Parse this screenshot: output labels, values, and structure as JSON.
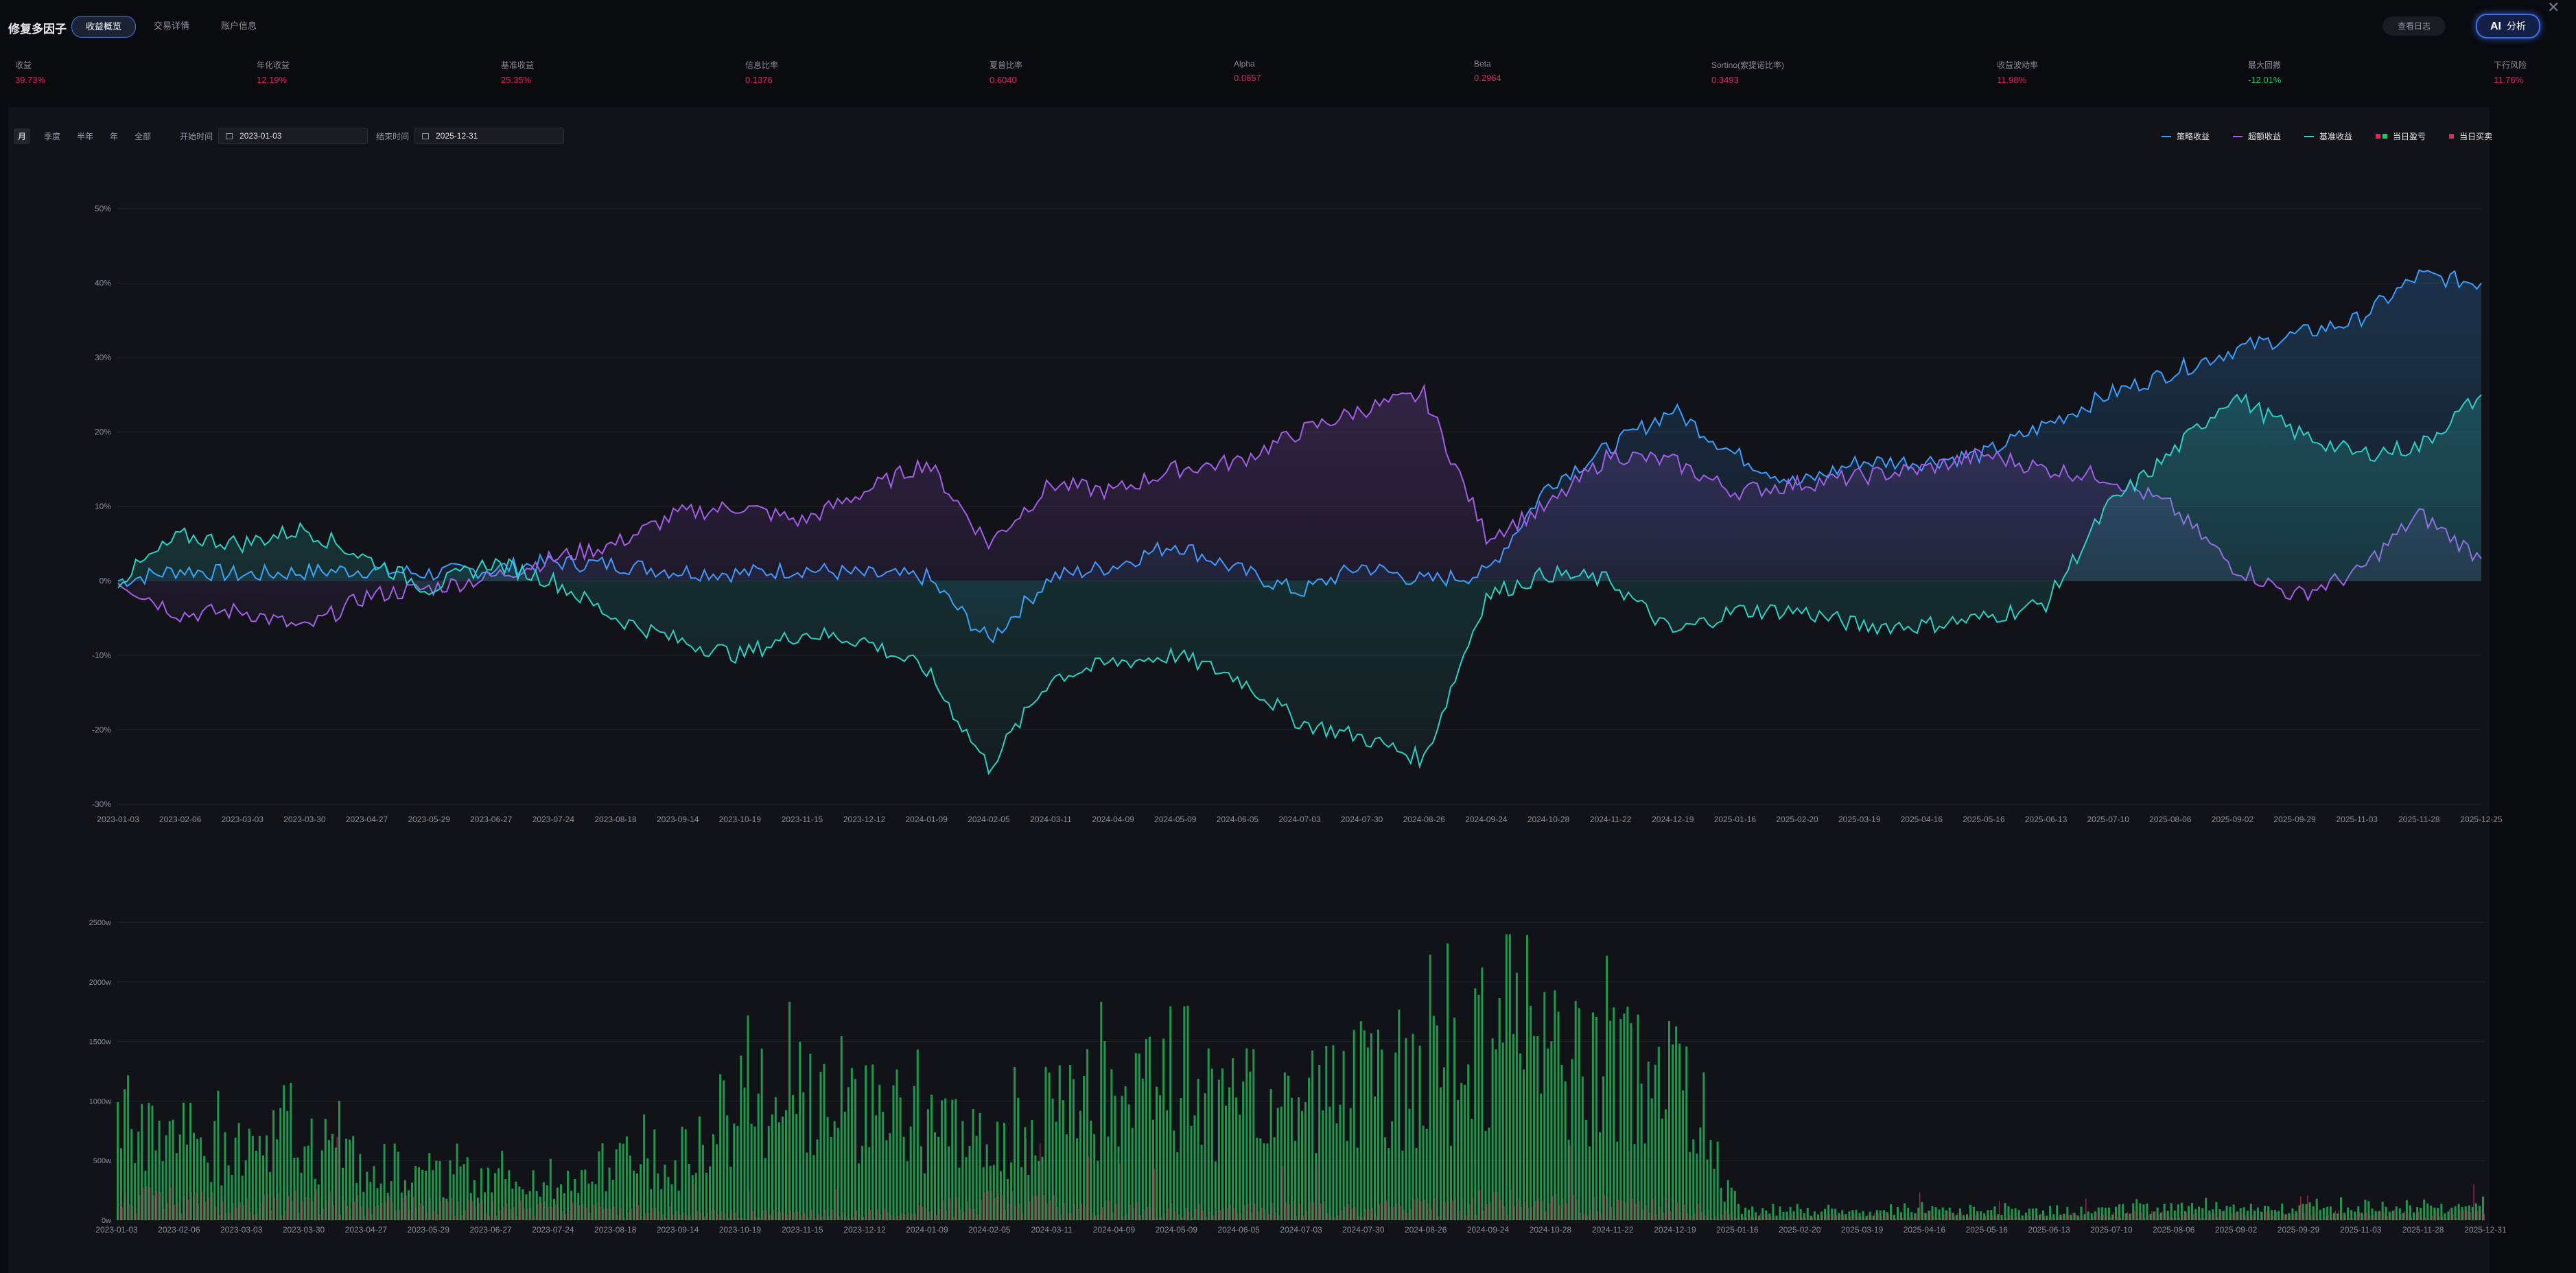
{
  "header": {
    "title": "修复多因子",
    "tabs": [
      {
        "label": "收益概览",
        "active": true
      },
      {
        "label": "交易详情",
        "active": false
      },
      {
        "label": "账户信息",
        "active": false
      }
    ],
    "history_label": "查看日志",
    "ai_label": "分析"
  },
  "metrics": [
    {
      "label": "收益",
      "value": "39.73%",
      "color": "#e0245e"
    },
    {
      "label": "年化收益",
      "value": "12.19%",
      "color": "#e0245e"
    },
    {
      "label": "基准收益",
      "value": "25.35%",
      "color": "#e0245e"
    },
    {
      "label": "信息比率",
      "value": "0.1376",
      "color": "#e0245e"
    },
    {
      "label": "夏普比率",
      "value": "0.6040",
      "color": "#e0245e"
    },
    {
      "label": "Alpha",
      "value": "0.0657",
      "color": "#e0245e"
    },
    {
      "label": "Beta",
      "value": "0.2964",
      "color": "#e0245e"
    },
    {
      "label": "Sortino(索提诺比率)",
      "value": "0.3493",
      "color": "#e0245e"
    },
    {
      "label": "收益波动率",
      "value": "11.98%",
      "color": "#e0245e"
    },
    {
      "label": "最大回撤",
      "value": "-12.01%",
      "color": "#22c55e"
    },
    {
      "label": "下行风险",
      "value": "11.76%",
      "color": "#e0245e"
    }
  ],
  "controls": {
    "periods": [
      {
        "label": "月",
        "active": true
      },
      {
        "label": "季度",
        "active": false
      },
      {
        "label": "半年",
        "active": false
      },
      {
        "label": "年",
        "active": false
      },
      {
        "label": "全部",
        "active": false
      }
    ],
    "start_label": "开始时间",
    "start_value": "2023-01-03",
    "end_label": "结束时间",
    "end_value": "2025-12-31"
  },
  "legend": [
    {
      "label": "策略收益",
      "color": "#3b9eff",
      "kind": "line"
    },
    {
      "label": "超额收益",
      "color": "#a45ee8",
      "kind": "line"
    },
    {
      "label": "基准收益",
      "color": "#2bd1c3",
      "kind": "line"
    },
    {
      "label": "当日盈亏",
      "color": "#e0245e",
      "kind": "square2",
      "color2": "#22c55e"
    },
    {
      "label": "当日买卖",
      "color": "#e0245e",
      "kind": "square1"
    }
  ],
  "chart_data": [
    {
      "type": "line",
      "x_ticks": [
        "2023-01-03",
        "2023-02-06",
        "2023-03-03",
        "2023-03-30",
        "2023-04-27",
        "2023-05-29",
        "2023-06-27",
        "2023-07-24",
        "2023-08-18",
        "2023-09-14",
        "2023-10-19",
        "2023-11-15",
        "2023-12-12",
        "2024-01-09",
        "2024-02-05",
        "2024-03-11",
        "2024-04-09",
        "2024-05-09",
        "2024-06-05",
        "2024-07-03",
        "2024-07-30",
        "2024-08-26",
        "2024-09-24",
        "2024-10-28",
        "2024-11-22",
        "2024-12-19",
        "2025-01-16",
        "2025-02-20",
        "2025-03-19",
        "2025-04-16",
        "2025-05-16",
        "2025-06-13",
        "2025-07-10",
        "2025-08-06",
        "2025-09-02",
        "2025-09-29",
        "2025-11-03",
        "2025-11-28",
        "2025-12-25"
      ],
      "y_ticks": [
        "50%",
        "40%",
        "30%",
        "20%",
        "10%",
        "0%",
        "-10%",
        "-20%",
        "-30%"
      ],
      "ylim": [
        -30,
        50
      ],
      "series": [
        {
          "name": "策略收益",
          "color": "#3b9eff",
          "values": [
            0,
            1.5,
            0.8,
            1.2,
            1.5,
            1.0,
            1.6,
            2.5,
            2.2,
            1.3,
            1.0,
            1.6,
            0.8,
            0.5,
            -8.0,
            0.5,
            2.0,
            5.0,
            1.5,
            -1.5,
            2.0,
            0,
            1.0,
            13.0,
            18.0,
            23.0,
            17.0,
            13.0,
            16.0,
            16.0,
            17.0,
            21.0,
            25.0,
            28.0,
            31.0,
            33.0,
            35.0,
            41.0,
            40.0
          ]
        },
        {
          "name": "超额收益",
          "color": "#a45ee8",
          "values": [
            0,
            -4.5,
            -4.0,
            -6.5,
            -2.0,
            -1.0,
            0.5,
            3.0,
            5.0,
            9.0,
            10.0,
            8.0,
            12.0,
            16.0,
            5.0,
            13.0,
            12.0,
            15.0,
            16.0,
            20.0,
            23.0,
            25.0,
            6.0,
            10.0,
            17.0,
            16.0,
            12.0,
            13.0,
            14.0,
            15.0,
            17.0,
            15.0,
            14.0,
            10.0,
            2.0,
            -2.0,
            1.0,
            9.0,
            3.0
          ]
        },
        {
          "name": "基准收益",
          "color": "#2bd1c3",
          "values": [
            0,
            6.0,
            5.0,
            7.0,
            3.0,
            -1.0,
            2.5,
            0,
            -5.0,
            -8.0,
            -10.0,
            -7.0,
            -8.0,
            -12.0,
            -25.0,
            -13.0,
            -11.0,
            -10.0,
            -13.0,
            -19.0,
            -21.0,
            -24.0,
            -2.0,
            1.0,
            0,
            -7.0,
            -4.0,
            -4.0,
            -6.0,
            -6.0,
            -5.0,
            -3.0,
            10.0,
            17.0,
            25.0,
            20.0,
            17.0,
            18.0,
            25.0
          ]
        }
      ]
    },
    {
      "type": "bar",
      "x_ticks": [
        "2023-01-03",
        "2023-02-06",
        "2023-03-03",
        "2023-03-30",
        "2023-04-27",
        "2023-05-29",
        "2023-06-27",
        "2023-07-24",
        "2023-08-18",
        "2023-09-14",
        "2023-10-19",
        "2023-11-15",
        "2023-12-12",
        "2024-01-09",
        "2024-02-05",
        "2024-03-11",
        "2024-04-09",
        "2024-05-09",
        "2024-06-05",
        "2024-07-03",
        "2024-07-30",
        "2024-08-26",
        "2024-09-24",
        "2024-10-28",
        "2024-11-22",
        "2024-12-19",
        "2025-01-16",
        "2025-02-20",
        "2025-03-19",
        "2025-04-16",
        "2025-05-16",
        "2025-06-13",
        "2025-07-10",
        "2025-08-06",
        "2025-09-02",
        "2025-09-29",
        "2025-11-03",
        "2025-11-28",
        "2025-12-31"
      ],
      "y_ticks": [
        "2500w",
        "2000w",
        "1500w",
        "1000w",
        "500w",
        "0w"
      ],
      "ylim": [
        0,
        2500
      ],
      "unit": "w",
      "series": [
        {
          "name": "当日盈亏",
          "color": "#22c55e",
          "values": [
            900,
            700,
            600,
            700,
            500,
            400,
            350,
            300,
            500,
            550,
            1000,
            1100,
            1050,
            800,
            600,
            1000,
            1100,
            1050,
            1100,
            1250,
            1200,
            1300,
            1500,
            1350,
            1300,
            1250,
            80,
            80,
            70,
            90,
            90,
            70,
            100,
            110,
            110,
            100,
            120,
            120,
            140
          ]
        },
        {
          "name": "当日买卖",
          "color": "#e0245e",
          "values": [
            250,
            200,
            150,
            200,
            150,
            150,
            120,
            120,
            100,
            80,
            60,
            70,
            60,
            100,
            200,
            150,
            120,
            100,
            100,
            120,
            110,
            140,
            200,
            160,
            150,
            130,
            40,
            40,
            40,
            60,
            40,
            40,
            50,
            60,
            60,
            50,
            70,
            60,
            80
          ]
        }
      ]
    }
  ]
}
